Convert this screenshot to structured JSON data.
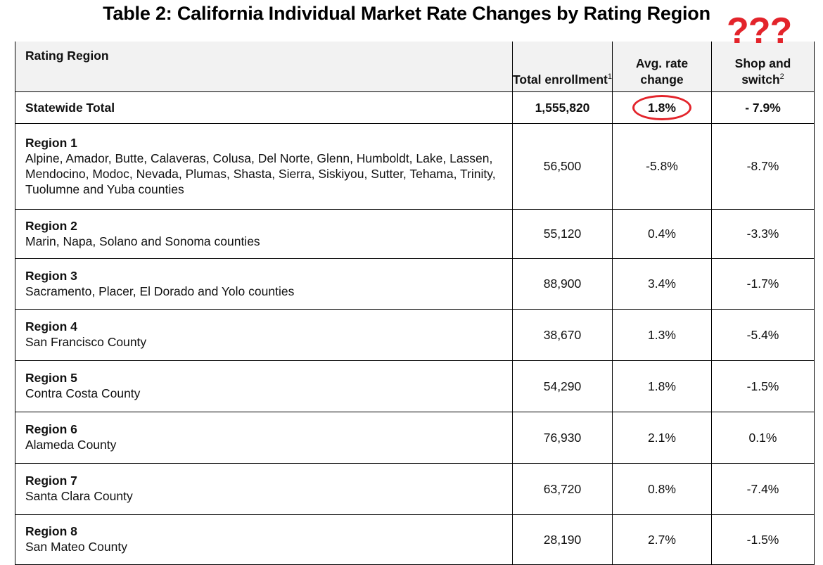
{
  "title": "Table 2: California Individual Market Rate Changes by Rating Region",
  "annotation": {
    "question_marks": "???",
    "color": "#e3242b",
    "circled_value": "1.8%"
  },
  "table": {
    "headers": {
      "region": "Rating Region",
      "enrollment": "Total enrollment",
      "enrollment_note": "1",
      "rate_change": "Avg. rate change",
      "shop_switch": "Shop and switch",
      "shop_switch_note": "2"
    },
    "total": {
      "label": "Statewide Total",
      "enrollment": "1,555,820",
      "rate_change": "1.8%",
      "shop_switch": "- 7.9%"
    },
    "rows": [
      {
        "name": "Region 1",
        "counties": "Alpine, Amador, Butte, Calaveras, Colusa, Del Norte, Glenn, Humboldt, Lake, Lassen, Mendocino, Modoc, Nevada, Plumas, Shasta, Sierra, Siskiyou, Sutter, Tehama, Trinity, Tuolumne and Yuba counties",
        "enrollment": "56,500",
        "rate_change": "-5.8%",
        "shop_switch": "-8.7%"
      },
      {
        "name": "Region 2",
        "counties": "Marin, Napa, Solano and Sonoma counties",
        "enrollment": "55,120",
        "rate_change": "0.4%",
        "shop_switch": "-3.3%"
      },
      {
        "name": "Region 3",
        "counties": "Sacramento, Placer, El Dorado and Yolo counties",
        "enrollment": "88,900",
        "rate_change": "3.4%",
        "shop_switch": "-1.7%"
      },
      {
        "name": "Region 4",
        "counties": "San Francisco County",
        "enrollment": "38,670",
        "rate_change": "1.3%",
        "shop_switch": "-5.4%"
      },
      {
        "name": "Region 5",
        "counties": "Contra Costa County",
        "enrollment": "54,290",
        "rate_change": "1.8%",
        "shop_switch": "-1.5%"
      },
      {
        "name": "Region 6",
        "counties": "Alameda County",
        "enrollment": "76,930",
        "rate_change": "2.1%",
        "shop_switch": "0.1%"
      },
      {
        "name": "Region 7",
        "counties": "Santa Clara County",
        "enrollment": "63,720",
        "rate_change": "0.8%",
        "shop_switch": "-7.4%"
      },
      {
        "name": "Region 8",
        "counties": "San Mateo County",
        "enrollment": "28,190",
        "rate_change": "2.7%",
        "shop_switch": "-1.5%"
      }
    ]
  }
}
